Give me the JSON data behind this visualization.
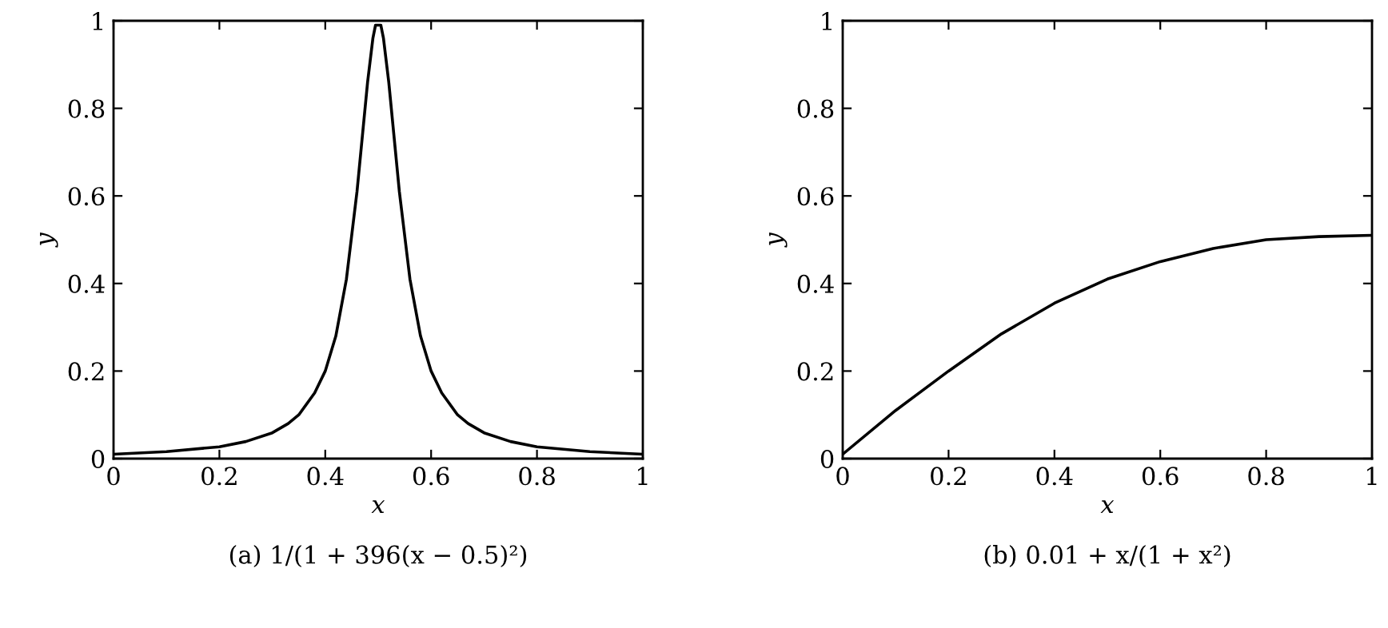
{
  "chart_data": [
    {
      "type": "line",
      "title": "(a) 1/(1 + 396(x − 0.5)²)",
      "xlabel": "x",
      "ylabel": "y",
      "series": [
        {
          "color": "#000000",
          "x": [
            0,
            0.1,
            0.2,
            0.25,
            0.3,
            0.33,
            0.35,
            0.38,
            0.4,
            0.42,
            0.44,
            0.46,
            0.48,
            0.49,
            0.495,
            0.505,
            0.51,
            0.52,
            0.54,
            0.56,
            0.58,
            0.6,
            0.62,
            0.65,
            0.67,
            0.7,
            0.75,
            0.8,
            0.9,
            1
          ],
          "values": [
            0.01,
            0.016,
            0.027,
            0.039,
            0.059,
            0.08,
            0.1,
            0.15,
            0.2,
            0.28,
            0.41,
            0.61,
            0.86,
            0.96,
            0.99,
            0.99,
            0.96,
            0.86,
            0.61,
            0.41,
            0.28,
            0.2,
            0.15,
            0.1,
            0.08,
            0.059,
            0.039,
            0.027,
            0.016,
            0.01
          ]
        }
      ],
      "xlim": [
        0,
        1
      ],
      "ylim": [
        0,
        1
      ],
      "xticks": [
        0,
        0.2,
        0.4,
        0.6,
        0.8,
        1
      ],
      "yticks": [
        0,
        0.2,
        0.4,
        0.6,
        0.8,
        1
      ],
      "grid": false,
      "marker": "none",
      "line_style": "solid"
    },
    {
      "type": "line",
      "title": "(b) 0.01 + x/(1 + x²)",
      "xlabel": "x",
      "ylabel": "y",
      "series": [
        {
          "color": "#000000",
          "x": [
            0,
            0.1,
            0.2,
            0.3,
            0.4,
            0.5,
            0.6,
            0.7,
            0.8,
            0.9,
            1
          ],
          "values": [
            0.01,
            0.11,
            0.2,
            0.285,
            0.355,
            0.41,
            0.45,
            0.48,
            0.5,
            0.507,
            0.51
          ]
        }
      ],
      "xlim": [
        0,
        1
      ],
      "ylim": [
        0,
        1
      ],
      "xticks": [
        0,
        0.2,
        0.4,
        0.6,
        0.8,
        1
      ],
      "yticks": [
        0,
        0.2,
        0.4,
        0.6,
        0.8,
        1
      ],
      "grid": false,
      "marker": "none",
      "line_style": "solid"
    }
  ]
}
